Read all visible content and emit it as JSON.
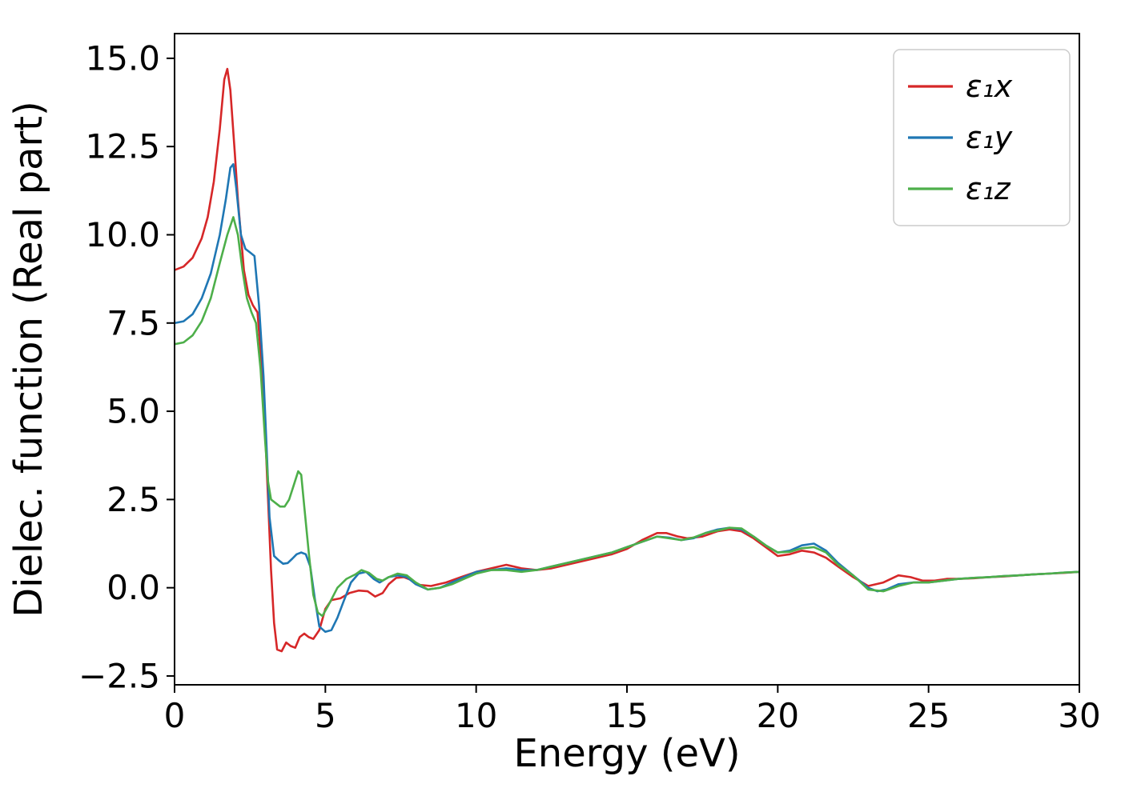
{
  "figure": {
    "background": "#ffffff"
  },
  "chart_data": {
    "type": "line",
    "title": "",
    "xlabel": "Energy (eV)",
    "ylabel": "Dielec. function (Real part)",
    "xlim": [
      0,
      30
    ],
    "ylim": [
      -2.75,
      15.7
    ],
    "xticks": [
      0,
      5,
      10,
      15,
      20,
      25,
      30
    ],
    "xtick_labels": [
      "0",
      "5",
      "10",
      "15",
      "20",
      "25",
      "30"
    ],
    "yticks": [
      -2.5,
      0.0,
      2.5,
      5.0,
      7.5,
      10.0,
      12.5,
      15.0
    ],
    "ytick_labels": [
      "−2.5",
      "0.0",
      "2.5",
      "5.0",
      "7.5",
      "10.0",
      "12.5",
      "15.0"
    ],
    "grid": false,
    "legend_position": "upper right",
    "axis_color": "#000000",
    "series": [
      {
        "name": "ε₁x",
        "color": "#d62728",
        "points": [
          [
            0,
            9.0
          ],
          [
            0.3,
            9.1
          ],
          [
            0.6,
            9.35
          ],
          [
            0.9,
            9.9
          ],
          [
            1.1,
            10.5
          ],
          [
            1.3,
            11.5
          ],
          [
            1.5,
            13.0
          ],
          [
            1.65,
            14.4
          ],
          [
            1.75,
            14.7
          ],
          [
            1.85,
            14.1
          ],
          [
            2.0,
            12.3
          ],
          [
            2.1,
            11.0
          ],
          [
            2.3,
            9.0
          ],
          [
            2.45,
            8.3
          ],
          [
            2.6,
            8.0
          ],
          [
            2.75,
            7.8
          ],
          [
            2.9,
            6.2
          ],
          [
            3.0,
            4.5
          ],
          [
            3.1,
            2.5
          ],
          [
            3.2,
            0.5
          ],
          [
            3.3,
            -1.0
          ],
          [
            3.4,
            -1.75
          ],
          [
            3.55,
            -1.8
          ],
          [
            3.7,
            -1.55
          ],
          [
            3.85,
            -1.65
          ],
          [
            4.0,
            -1.7
          ],
          [
            4.15,
            -1.4
          ],
          [
            4.3,
            -1.3
          ],
          [
            4.45,
            -1.4
          ],
          [
            4.6,
            -1.45
          ],
          [
            4.8,
            -1.2
          ],
          [
            5.0,
            -0.6
          ],
          [
            5.2,
            -0.35
          ],
          [
            5.5,
            -0.3
          ],
          [
            5.8,
            -0.15
          ],
          [
            6.1,
            -0.08
          ],
          [
            6.4,
            -0.1
          ],
          [
            6.65,
            -0.25
          ],
          [
            6.9,
            -0.15
          ],
          [
            7.1,
            0.1
          ],
          [
            7.35,
            0.28
          ],
          [
            7.6,
            0.3
          ],
          [
            7.85,
            0.22
          ],
          [
            8.1,
            0.08
          ],
          [
            8.5,
            0.05
          ],
          [
            9.0,
            0.15
          ],
          [
            9.5,
            0.3
          ],
          [
            10.0,
            0.45
          ],
          [
            10.5,
            0.55
          ],
          [
            11.0,
            0.65
          ],
          [
            11.5,
            0.55
          ],
          [
            12.0,
            0.5
          ],
          [
            12.5,
            0.55
          ],
          [
            13.0,
            0.65
          ],
          [
            13.5,
            0.75
          ],
          [
            14.0,
            0.85
          ],
          [
            14.5,
            0.95
          ],
          [
            15.0,
            1.1
          ],
          [
            15.5,
            1.35
          ],
          [
            16.0,
            1.55
          ],
          [
            16.3,
            1.55
          ],
          [
            16.7,
            1.45
          ],
          [
            17.0,
            1.4
          ],
          [
            17.5,
            1.45
          ],
          [
            18.0,
            1.6
          ],
          [
            18.4,
            1.65
          ],
          [
            18.8,
            1.6
          ],
          [
            19.2,
            1.4
          ],
          [
            19.6,
            1.15
          ],
          [
            20.0,
            0.9
          ],
          [
            20.4,
            0.95
          ],
          [
            20.8,
            1.05
          ],
          [
            21.2,
            1.0
          ],
          [
            21.6,
            0.85
          ],
          [
            22.0,
            0.6
          ],
          [
            22.5,
            0.3
          ],
          [
            23.0,
            0.05
          ],
          [
            23.5,
            0.15
          ],
          [
            24.0,
            0.35
          ],
          [
            24.4,
            0.3
          ],
          [
            24.8,
            0.2
          ],
          [
            25.2,
            0.2
          ],
          [
            25.6,
            0.25
          ],
          [
            26.0,
            0.25
          ],
          [
            26.5,
            0.27
          ],
          [
            27.0,
            0.3
          ],
          [
            27.5,
            0.32
          ],
          [
            28.0,
            0.35
          ],
          [
            28.5,
            0.38
          ],
          [
            29.0,
            0.4
          ],
          [
            29.5,
            0.42
          ],
          [
            30.0,
            0.45
          ]
        ]
      },
      {
        "name": "ε₁y",
        "color": "#1f77b4",
        "points": [
          [
            0,
            7.5
          ],
          [
            0.3,
            7.55
          ],
          [
            0.6,
            7.75
          ],
          [
            0.9,
            8.2
          ],
          [
            1.2,
            8.9
          ],
          [
            1.5,
            10.0
          ],
          [
            1.7,
            11.0
          ],
          [
            1.85,
            11.9
          ],
          [
            1.95,
            12.0
          ],
          [
            2.05,
            11.3
          ],
          [
            2.2,
            10.0
          ],
          [
            2.35,
            9.6
          ],
          [
            2.5,
            9.5
          ],
          [
            2.65,
            9.4
          ],
          [
            2.8,
            8.0
          ],
          [
            2.95,
            6.0
          ],
          [
            3.05,
            4.0
          ],
          [
            3.15,
            2.0
          ],
          [
            3.3,
            0.9
          ],
          [
            3.45,
            0.78
          ],
          [
            3.6,
            0.68
          ],
          [
            3.75,
            0.7
          ],
          [
            3.9,
            0.82
          ],
          [
            4.05,
            0.95
          ],
          [
            4.2,
            1.0
          ],
          [
            4.35,
            0.95
          ],
          [
            4.5,
            0.6
          ],
          [
            4.65,
            -0.3
          ],
          [
            4.8,
            -1.1
          ],
          [
            5.0,
            -1.25
          ],
          [
            5.2,
            -1.2
          ],
          [
            5.4,
            -0.85
          ],
          [
            5.6,
            -0.4
          ],
          [
            5.85,
            0.15
          ],
          [
            6.1,
            0.4
          ],
          [
            6.35,
            0.45
          ],
          [
            6.6,
            0.25
          ],
          [
            6.8,
            0.15
          ],
          [
            7.1,
            0.3
          ],
          [
            7.4,
            0.35
          ],
          [
            7.7,
            0.3
          ],
          [
            8.0,
            0.1
          ],
          [
            8.4,
            -0.05
          ],
          [
            8.8,
            0.0
          ],
          [
            9.2,
            0.15
          ],
          [
            9.6,
            0.3
          ],
          [
            10.0,
            0.45
          ],
          [
            10.5,
            0.5
          ],
          [
            11.0,
            0.55
          ],
          [
            11.5,
            0.5
          ],
          [
            12.0,
            0.5
          ],
          [
            12.5,
            0.6
          ],
          [
            13.0,
            0.7
          ],
          [
            13.5,
            0.8
          ],
          [
            14.0,
            0.9
          ],
          [
            14.5,
            1.0
          ],
          [
            15.0,
            1.15
          ],
          [
            15.5,
            1.3
          ],
          [
            16.0,
            1.45
          ],
          [
            16.4,
            1.42
          ],
          [
            16.8,
            1.35
          ],
          [
            17.2,
            1.4
          ],
          [
            17.6,
            1.55
          ],
          [
            18.0,
            1.65
          ],
          [
            18.4,
            1.7
          ],
          [
            18.8,
            1.65
          ],
          [
            19.2,
            1.45
          ],
          [
            19.6,
            1.2
          ],
          [
            20.0,
            1.0
          ],
          [
            20.4,
            1.05
          ],
          [
            20.8,
            1.2
          ],
          [
            21.2,
            1.25
          ],
          [
            21.6,
            1.05
          ],
          [
            22.0,
            0.7
          ],
          [
            22.5,
            0.35
          ],
          [
            23.0,
            0.0
          ],
          [
            23.3,
            -0.1
          ],
          [
            23.6,
            -0.05
          ],
          [
            24.0,
            0.1
          ],
          [
            24.5,
            0.15
          ],
          [
            25.0,
            0.15
          ],
          [
            25.5,
            0.2
          ],
          [
            26.0,
            0.25
          ],
          [
            26.5,
            0.28
          ],
          [
            27.0,
            0.3
          ],
          [
            27.5,
            0.33
          ],
          [
            28.0,
            0.35
          ],
          [
            28.5,
            0.38
          ],
          [
            29.0,
            0.4
          ],
          [
            29.5,
            0.43
          ],
          [
            30.0,
            0.45
          ]
        ]
      },
      {
        "name": "ε₁z",
        "color": "#4daf4a",
        "points": [
          [
            0,
            6.9
          ],
          [
            0.3,
            6.95
          ],
          [
            0.6,
            7.15
          ],
          [
            0.9,
            7.55
          ],
          [
            1.2,
            8.2
          ],
          [
            1.5,
            9.2
          ],
          [
            1.75,
            10.0
          ],
          [
            1.95,
            10.5
          ],
          [
            2.1,
            10.0
          ],
          [
            2.25,
            9.0
          ],
          [
            2.4,
            8.2
          ],
          [
            2.55,
            7.8
          ],
          [
            2.7,
            7.5
          ],
          [
            2.85,
            6.2
          ],
          [
            3.0,
            4.2
          ],
          [
            3.1,
            3.0
          ],
          [
            3.2,
            2.5
          ],
          [
            3.35,
            2.4
          ],
          [
            3.5,
            2.3
          ],
          [
            3.65,
            2.3
          ],
          [
            3.8,
            2.5
          ],
          [
            3.95,
            2.9
          ],
          [
            4.1,
            3.3
          ],
          [
            4.2,
            3.2
          ],
          [
            4.3,
            2.3
          ],
          [
            4.45,
            1.0
          ],
          [
            4.6,
            -0.2
          ],
          [
            4.75,
            -0.7
          ],
          [
            4.9,
            -0.8
          ],
          [
            5.1,
            -0.5
          ],
          [
            5.4,
            0.0
          ],
          [
            5.7,
            0.25
          ],
          [
            6.0,
            0.38
          ],
          [
            6.2,
            0.5
          ],
          [
            6.45,
            0.42
          ],
          [
            6.7,
            0.25
          ],
          [
            6.9,
            0.2
          ],
          [
            7.1,
            0.3
          ],
          [
            7.4,
            0.4
          ],
          [
            7.7,
            0.35
          ],
          [
            8.0,
            0.15
          ],
          [
            8.4,
            -0.05
          ],
          [
            8.8,
            0.0
          ],
          [
            9.2,
            0.1
          ],
          [
            9.6,
            0.25
          ],
          [
            10.0,
            0.4
          ],
          [
            10.5,
            0.5
          ],
          [
            11.0,
            0.5
          ],
          [
            11.5,
            0.45
          ],
          [
            12.0,
            0.5
          ],
          [
            12.5,
            0.6
          ],
          [
            13.0,
            0.7
          ],
          [
            13.5,
            0.8
          ],
          [
            14.0,
            0.9
          ],
          [
            14.5,
            1.0
          ],
          [
            15.0,
            1.15
          ],
          [
            15.5,
            1.3
          ],
          [
            16.0,
            1.45
          ],
          [
            16.4,
            1.4
          ],
          [
            16.8,
            1.35
          ],
          [
            17.2,
            1.42
          ],
          [
            17.6,
            1.55
          ],
          [
            18.0,
            1.62
          ],
          [
            18.4,
            1.7
          ],
          [
            18.8,
            1.68
          ],
          [
            19.2,
            1.45
          ],
          [
            19.6,
            1.2
          ],
          [
            20.0,
            1.0
          ],
          [
            20.4,
            1.02
          ],
          [
            20.8,
            1.12
          ],
          [
            21.2,
            1.15
          ],
          [
            21.6,
            1.0
          ],
          [
            22.0,
            0.65
          ],
          [
            22.5,
            0.35
          ],
          [
            23.0,
            -0.05
          ],
          [
            23.5,
            -0.1
          ],
          [
            24.0,
            0.05
          ],
          [
            24.5,
            0.15
          ],
          [
            25.0,
            0.15
          ],
          [
            25.5,
            0.2
          ],
          [
            26.0,
            0.25
          ],
          [
            26.5,
            0.28
          ],
          [
            27.0,
            0.3
          ],
          [
            27.5,
            0.33
          ],
          [
            28.0,
            0.35
          ],
          [
            28.5,
            0.38
          ],
          [
            29.0,
            0.4
          ],
          [
            29.5,
            0.43
          ],
          [
            30.0,
            0.45
          ]
        ]
      }
    ]
  }
}
